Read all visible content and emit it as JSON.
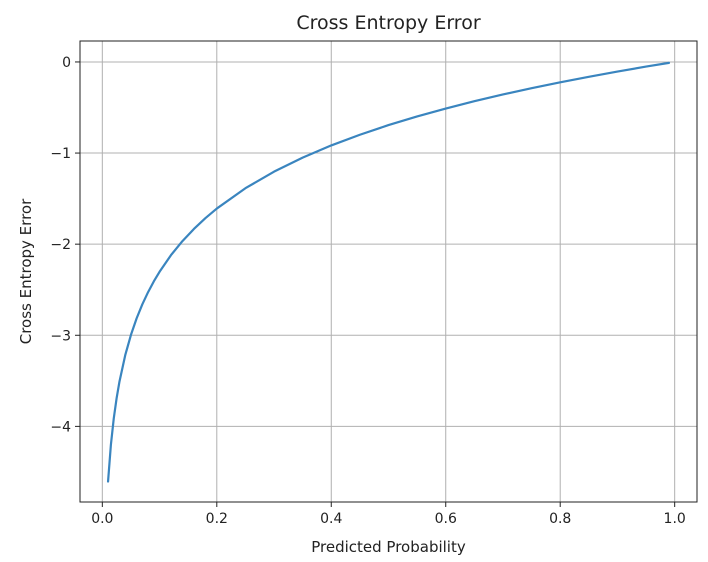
{
  "chart_data": {
    "type": "line",
    "title": "Cross Entropy Error",
    "xlabel": "Predicted Probability",
    "ylabel": "Cross Entropy Error",
    "xlim": [
      -0.039,
      1.039
    ],
    "ylim": [
      -4.83,
      0.23
    ],
    "grid": true,
    "x_ticks": [
      0.0,
      0.2,
      0.4,
      0.6,
      0.8,
      1.0
    ],
    "x_tick_labels": [
      "0.0",
      "0.2",
      "0.4",
      "0.6",
      "0.8",
      "1.0"
    ],
    "y_ticks": [
      0,
      -1,
      -2,
      -3,
      -4
    ],
    "y_tick_labels": [
      "0",
      "−1",
      "−2",
      "−3",
      "−4"
    ],
    "line_color": "#3a85bf",
    "series": [
      {
        "x": [
          0.01,
          0.015,
          0.02,
          0.025,
          0.03,
          0.04,
          0.05,
          0.06,
          0.07,
          0.08,
          0.09,
          0.1,
          0.12,
          0.14,
          0.16,
          0.18,
          0.2,
          0.25,
          0.3,
          0.35,
          0.4,
          0.45,
          0.5,
          0.55,
          0.6,
          0.65,
          0.7,
          0.75,
          0.8,
          0.85,
          0.9,
          0.95,
          0.99
        ],
        "y": [
          -4.605,
          -4.2,
          -3.912,
          -3.689,
          -3.507,
          -3.219,
          -2.996,
          -2.813,
          -2.659,
          -2.526,
          -2.408,
          -2.303,
          -2.12,
          -1.966,
          -1.833,
          -1.715,
          -1.609,
          -1.386,
          -1.204,
          -1.05,
          -0.916,
          -0.799,
          -0.693,
          -0.598,
          -0.511,
          -0.431,
          -0.357,
          -0.288,
          -0.223,
          -0.163,
          -0.105,
          -0.051,
          -0.01
        ]
      }
    ]
  }
}
